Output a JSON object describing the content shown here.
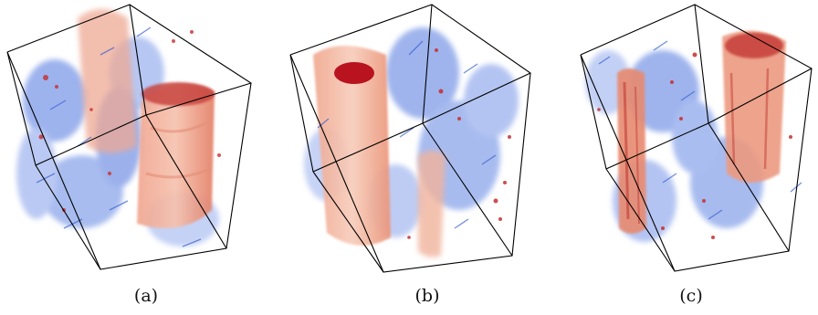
{
  "figure": {
    "panels": [
      {
        "label": "(a)"
      },
      {
        "label": "(b)"
      },
      {
        "label": "(c)"
      }
    ],
    "colors": {
      "warm": "#e8826a",
      "warm_dark": "#b4151f",
      "cool": "#5b7fe0",
      "cool_light": "#a9bdf2",
      "edge": "#000000"
    }
  }
}
